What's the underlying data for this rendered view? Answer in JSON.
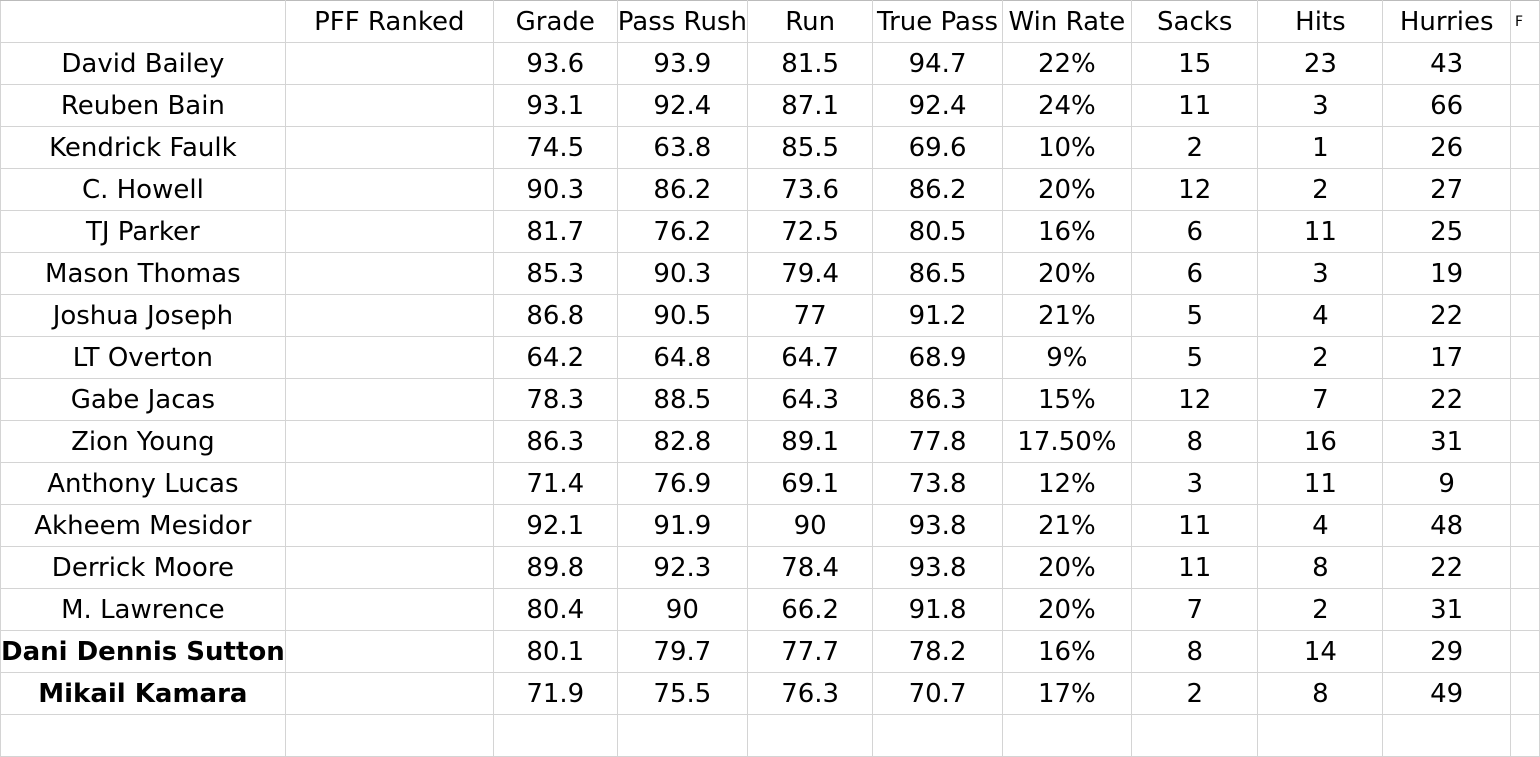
{
  "headers": [
    "",
    "PFF Ranked",
    "Grade",
    "Pass Rush",
    "Run",
    "True Pass",
    "Win Rate",
    "Sacks",
    "Hits",
    "Hurries"
  ],
  "edge_header": "F",
  "rows": [
    {
      "name": "David Bailey",
      "bold": false,
      "values": [
        "",
        "93.6",
        "93.9",
        "81.5",
        "94.7",
        "22%",
        "15",
        "23",
        "43"
      ]
    },
    {
      "name": "Reuben Bain",
      "bold": false,
      "values": [
        "",
        "93.1",
        "92.4",
        "87.1",
        "92.4",
        "24%",
        "11",
        "3",
        "66"
      ]
    },
    {
      "name": "Kendrick Faulk",
      "bold": false,
      "values": [
        "",
        "74.5",
        "63.8",
        "85.5",
        "69.6",
        "10%",
        "2",
        "1",
        "26"
      ]
    },
    {
      "name": "C. Howell",
      "bold": false,
      "values": [
        "",
        "90.3",
        "86.2",
        "73.6",
        "86.2",
        "20%",
        "12",
        "2",
        "27"
      ]
    },
    {
      "name": "TJ Parker",
      "bold": false,
      "values": [
        "",
        "81.7",
        "76.2",
        "72.5",
        "80.5",
        "16%",
        "6",
        "11",
        "25"
      ]
    },
    {
      "name": "Mason Thomas",
      "bold": false,
      "values": [
        "",
        "85.3",
        "90.3",
        "79.4",
        "86.5",
        "20%",
        "6",
        "3",
        "19"
      ]
    },
    {
      "name": "Joshua Joseph",
      "bold": false,
      "values": [
        "",
        "86.8",
        "90.5",
        "77",
        "91.2",
        "21%",
        "5",
        "4",
        "22"
      ]
    },
    {
      "name": "LT Overton",
      "bold": false,
      "values": [
        "",
        "64.2",
        "64.8",
        "64.7",
        "68.9",
        "9%",
        "5",
        "2",
        "17"
      ]
    },
    {
      "name": "Gabe Jacas",
      "bold": false,
      "values": [
        "",
        "78.3",
        "88.5",
        "64.3",
        "86.3",
        "15%",
        "12",
        "7",
        "22"
      ]
    },
    {
      "name": "Zion Young",
      "bold": false,
      "values": [
        "",
        "86.3",
        "82.8",
        "89.1",
        "77.8",
        "17.50%",
        "8",
        "16",
        "31"
      ]
    },
    {
      "name": "Anthony Lucas",
      "bold": false,
      "values": [
        "",
        "71.4",
        "76.9",
        "69.1",
        "73.8",
        "12%",
        "3",
        "11",
        "9"
      ]
    },
    {
      "name": "Akheem Mesidor",
      "bold": false,
      "values": [
        "",
        "92.1",
        "91.9",
        "90",
        "93.8",
        "21%",
        "11",
        "4",
        "48"
      ]
    },
    {
      "name": "Derrick Moore",
      "bold": false,
      "values": [
        "",
        "89.8",
        "92.3",
        "78.4",
        "93.8",
        "20%",
        "11",
        "8",
        "22"
      ]
    },
    {
      "name": "M. Lawrence",
      "bold": false,
      "values": [
        "",
        "80.4",
        "90",
        "66.2",
        "91.8",
        "20%",
        "7",
        "2",
        "31"
      ]
    },
    {
      "name": "Dani Dennis Sutton",
      "bold": true,
      "values": [
        "",
        "80.1",
        "79.7",
        "77.7",
        "78.2",
        "16%",
        "8",
        "14",
        "29"
      ]
    },
    {
      "name": "Mikail Kamara",
      "bold": true,
      "values": [
        "",
        "71.9",
        "75.5",
        "76.3",
        "70.7",
        "17%",
        "2",
        "8",
        "49"
      ]
    }
  ]
}
